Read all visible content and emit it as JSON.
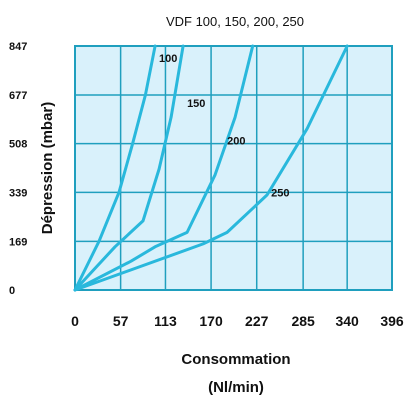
{
  "chart_data": {
    "type": "line",
    "title": "VDF 100, 150, 200, 250",
    "ylabel": "Dépression (mbar)",
    "xlabel_line1": "Consommation",
    "xlabel_line2": "(Nl/min)",
    "x_ticks": [
      "0",
      "57",
      "113",
      "170",
      "227",
      "285",
      "340",
      "396"
    ],
    "y_ticks": [
      "0",
      "169",
      "339",
      "508",
      "677",
      "847"
    ],
    "xlim": [
      0,
      396
    ],
    "ylim": [
      0,
      847
    ],
    "grid": true,
    "series": [
      {
        "name": "100",
        "points": [
          [
            0,
            0
          ],
          [
            30,
            169
          ],
          [
            55,
            339
          ],
          [
            72,
            508
          ],
          [
            88,
            677
          ],
          [
            100,
            847
          ]
        ]
      },
      {
        "name": "150",
        "points": [
          [
            0,
            0
          ],
          [
            50,
            150
          ],
          [
            85,
            240
          ],
          [
            105,
            420
          ],
          [
            120,
            600
          ],
          [
            135,
            847
          ]
        ]
      },
      {
        "name": "200",
        "points": [
          [
            0,
            0
          ],
          [
            70,
            100
          ],
          [
            100,
            150
          ],
          [
            140,
            200
          ],
          [
            175,
            400
          ],
          [
            200,
            600
          ],
          [
            222,
            847
          ]
        ]
      },
      {
        "name": "250",
        "points": [
          [
            0,
            0
          ],
          [
            80,
            80
          ],
          [
            160,
            160
          ],
          [
            190,
            200
          ],
          [
            240,
            330
          ],
          [
            290,
            560
          ],
          [
            340,
            847
          ]
        ]
      }
    ],
    "colors": {
      "plot_bg": "#d9f1fb",
      "grid": "#1f9fbe",
      "line": "#29b8dc",
      "border": "#1f9fbe"
    }
  }
}
